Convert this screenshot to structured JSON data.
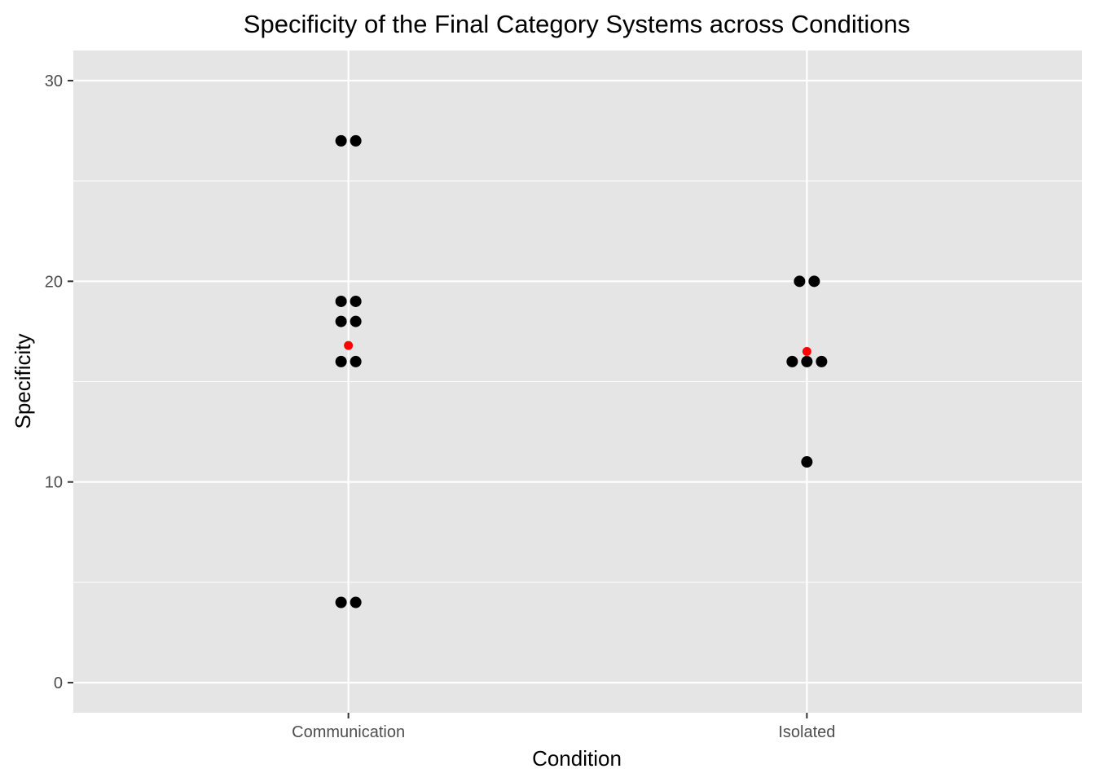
{
  "chart_data": {
    "type": "scatter",
    "title": "Specificity of the Final Category Systems across Conditions",
    "xlabel": "Condition",
    "ylabel": "Specificity",
    "categories": [
      "Communication",
      "Isolated"
    ],
    "ylim": [
      -1.5,
      31.5
    ],
    "yticks": [
      0,
      10,
      20,
      30
    ],
    "grid": true,
    "legend": "none",
    "series": [
      {
        "category": "Communication",
        "points": [
          27,
          27,
          19,
          19,
          18,
          18,
          16,
          16,
          4,
          4
        ],
        "mean": 16.8
      },
      {
        "category": "Isolated",
        "points": [
          20,
          20,
          16,
          16,
          16,
          11
        ],
        "mean": 16.5
      }
    ],
    "colors": {
      "panel": "#e5e5e5",
      "grid": "#ffffff",
      "point": "#000000",
      "mean_point": "#ff0000",
      "tick": "#333333"
    }
  }
}
